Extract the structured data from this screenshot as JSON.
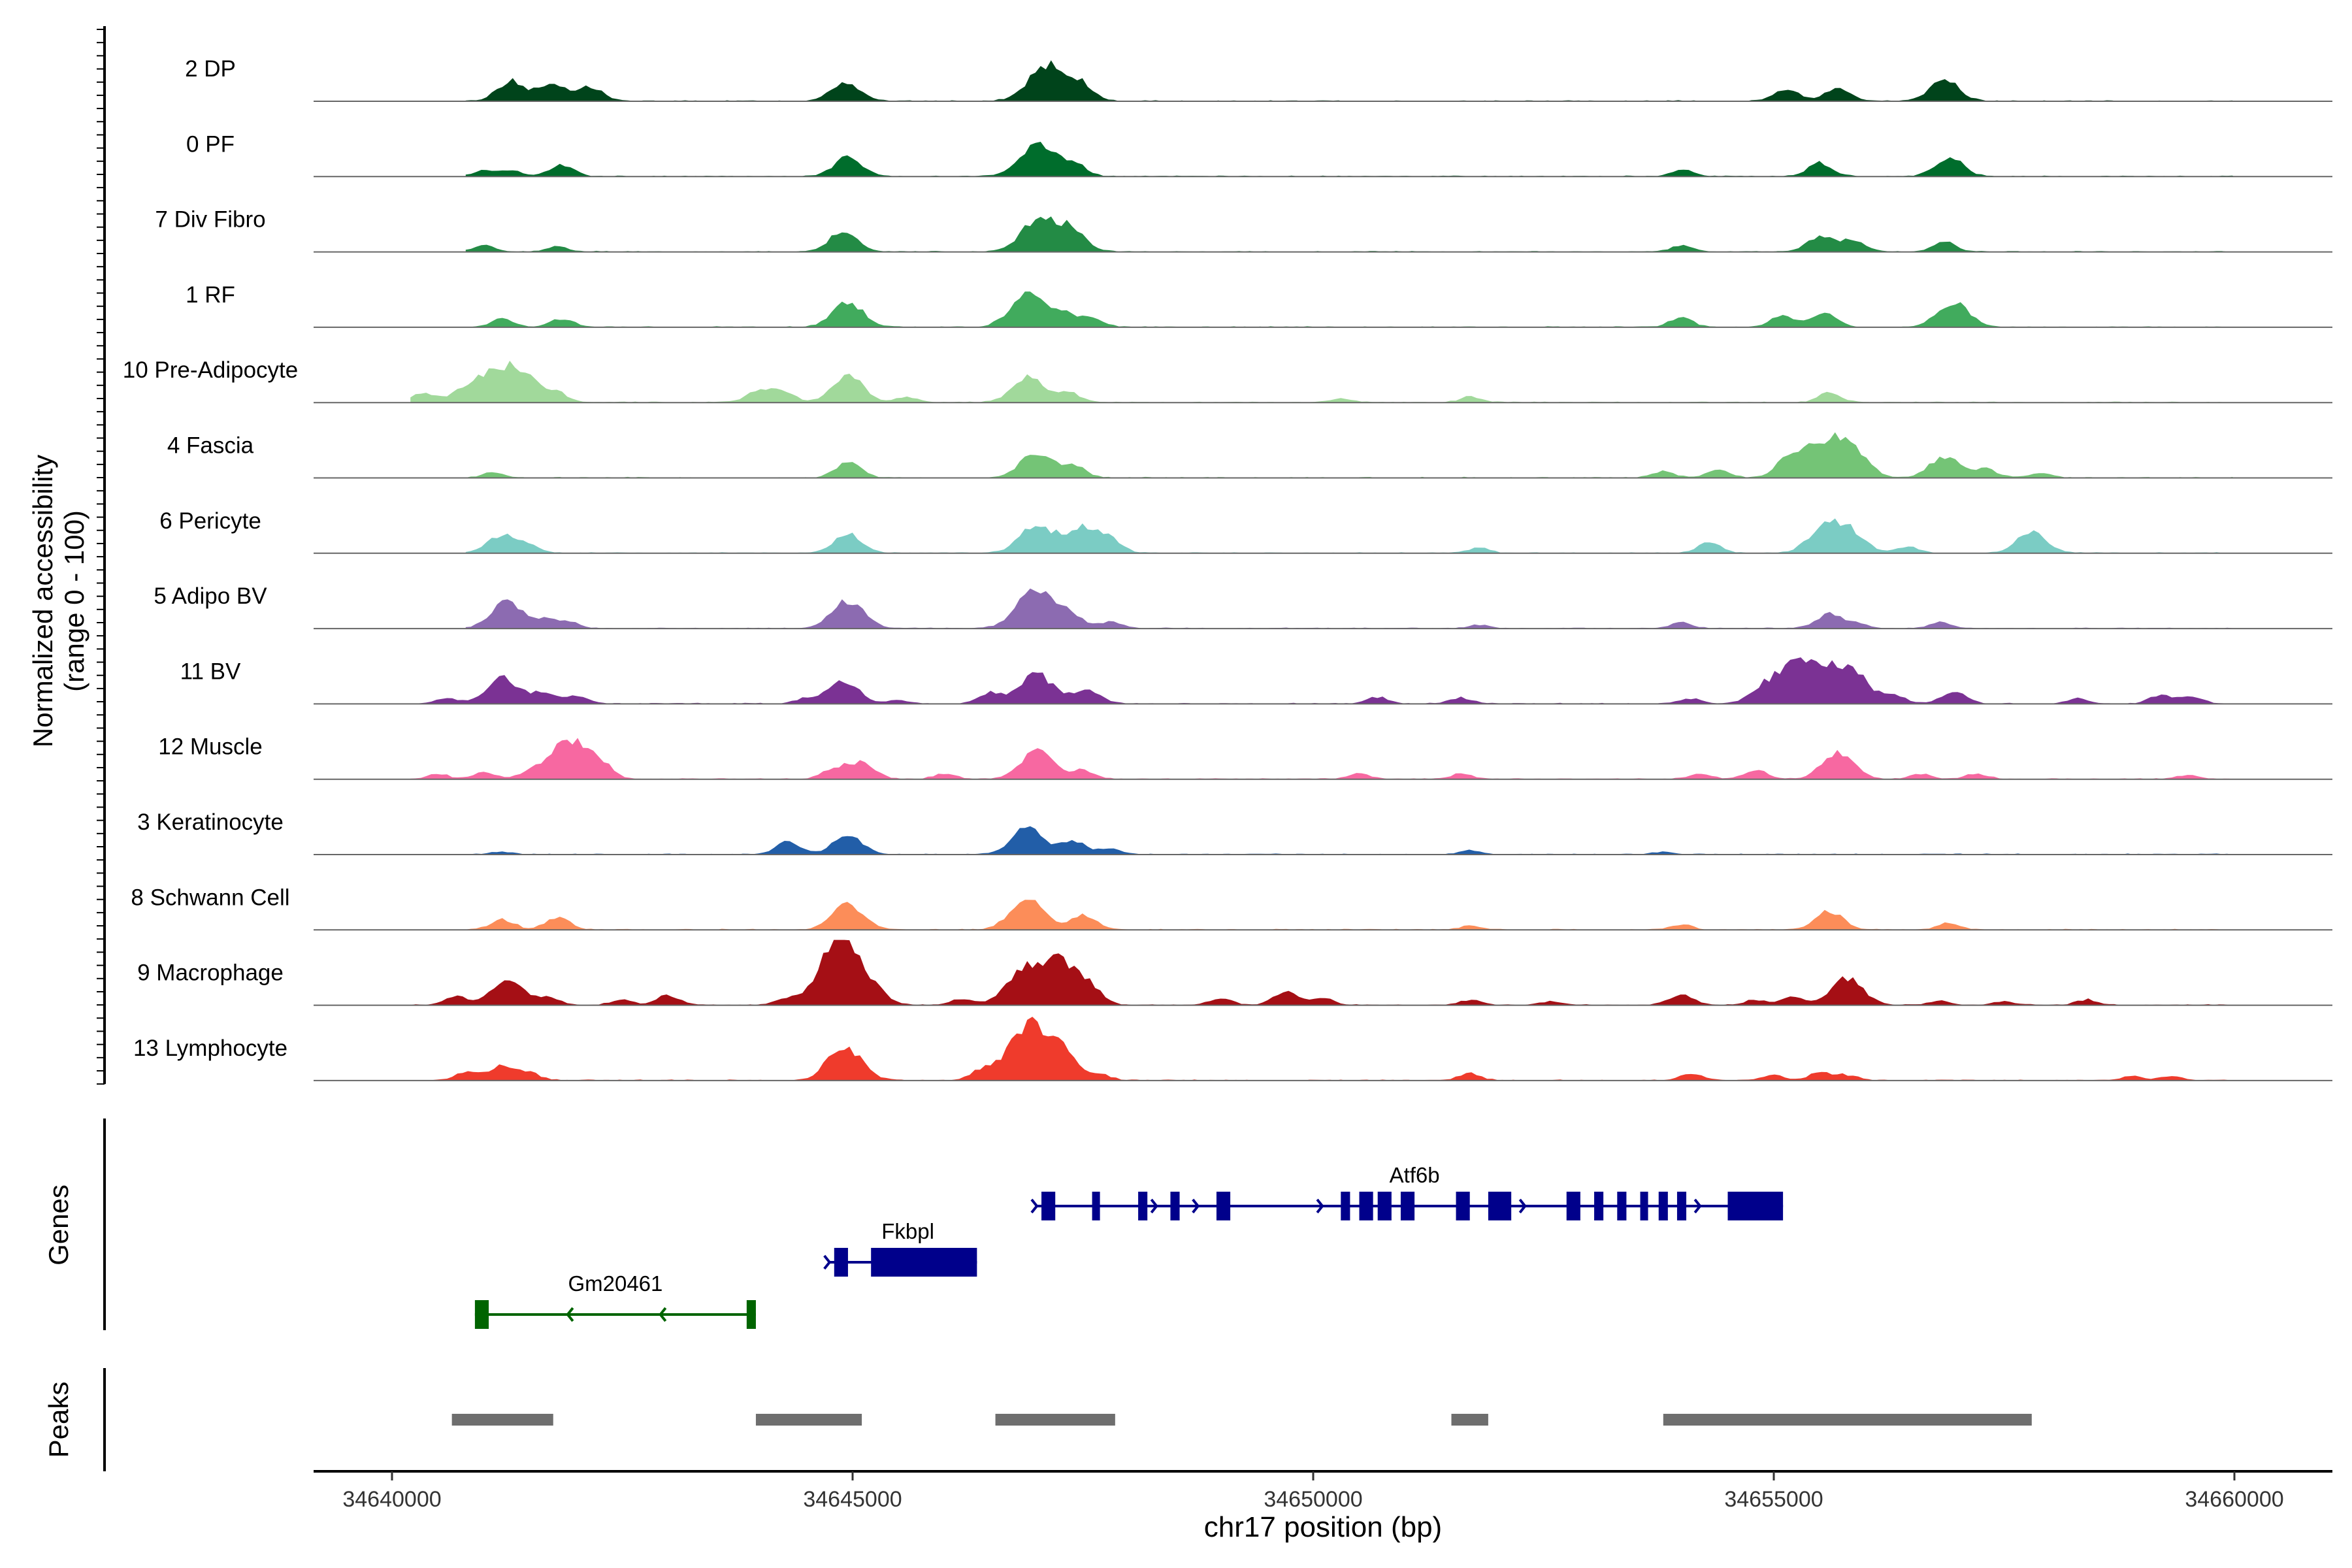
{
  "chart_data": {
    "type": "area",
    "title": "",
    "xlabel": "chr17 position (bp)",
    "ylabel": "Normalized accessibility\n(range 0 - 100)",
    "ylim": [
      0,
      100
    ],
    "xlim": [
      34639800,
      34662000
    ],
    "x_ticks": [
      34640000,
      34645000,
      34650000,
      34655000,
      34660000
    ],
    "x_tick_labels": [
      "34640000",
      "34645000",
      "34650000",
      "34655000",
      "34660000"
    ],
    "panel_labels": {
      "genes": "Genes",
      "peaks": "Peaks"
    },
    "tracks": [
      {
        "name": "2 DP",
        "color": "#00441b",
        "range": [
          34640800,
          34660000
        ],
        "peaks": [
          [
            34640850,
            34641300,
            2
          ],
          [
            34641700,
            34641300,
            6
          ],
          [
            34642250,
            34641450,
            8
          ],
          [
            34643200,
            34642550,
            3
          ],
          [
            34644950,
            34645150,
            7
          ],
          [
            34645600,
            34646100,
            2
          ],
          [
            34646800,
            34647150,
            9
          ],
          [
            34647200,
            34646800,
            2
          ],
          [
            34647500,
            34647800,
            5
          ],
          [
            34650000,
            34650500,
            2
          ],
          [
            34651500,
            34651900,
            3
          ],
          [
            34653300,
            34653200,
            6
          ],
          [
            34654300,
            34654600,
            4
          ],
          [
            34655600,
            34655800,
            7
          ],
          [
            34656500,
            34657900,
            4
          ],
          [
            34657100,
            34657100,
            11
          ],
          [
            34659000,
            34658700,
            2
          ]
        ],
        "bigpeaks": [
          [
            34641300,
            30
          ],
          [
            34641750,
            25
          ],
          [
            34642150,
            22
          ],
          [
            34644920,
            30
          ],
          [
            34647120,
            56
          ],
          [
            34647500,
            20
          ],
          [
            34655150,
            18
          ],
          [
            34655700,
            20
          ],
          [
            34656850,
            32
          ]
        ]
      },
      {
        "name": "0 PF",
        "color": "#006d2c",
        "range": [
          34640800,
          34660000
        ],
        "bigpeaks": [
          [
            34641000,
            9
          ],
          [
            34641300,
            9
          ],
          [
            34641850,
            17
          ],
          [
            34644950,
            29
          ],
          [
            34647000,
            50
          ],
          [
            34647400,
            19
          ],
          [
            34654000,
            10
          ],
          [
            34655500,
            20
          ],
          [
            34656900,
            29
          ]
        ]
      },
      {
        "name": "7 Div Fibro",
        "color": "#238b45",
        "range": [
          34640800,
          34660000
        ],
        "bigpeaks": [
          [
            34641000,
            10
          ],
          [
            34641800,
            8
          ],
          [
            34644900,
            30
          ],
          [
            34647000,
            45
          ],
          [
            34647350,
            35
          ],
          [
            34654000,
            9
          ],
          [
            34655500,
            22
          ],
          [
            34655850,
            18
          ],
          [
            34656850,
            15
          ]
        ]
      },
      {
        "name": "1 RF",
        "color": "#41ab5d",
        "range": [
          34640800,
          34660000
        ],
        "bigpeaks": [
          [
            34641200,
            13
          ],
          [
            34641850,
            12
          ],
          [
            34644950,
            37
          ],
          [
            34646900,
            48
          ],
          [
            34647300,
            20
          ],
          [
            34647600,
            12
          ],
          [
            34654000,
            14
          ],
          [
            34655100,
            17
          ],
          [
            34655550,
            20
          ],
          [
            34656950,
            38
          ]
        ]
      },
      {
        "name": "10 Pre-Adipocyte",
        "color": "#a1d99b",
        "range": [
          34640200,
          34660000
        ],
        "bigpeaks": [
          [
            34640350,
            14
          ],
          [
            34640800,
            22
          ],
          [
            34641200,
            55
          ],
          [
            34641500,
            20
          ],
          [
            34641800,
            14
          ],
          [
            34644000,
            20
          ],
          [
            34644250,
            14
          ],
          [
            34644950,
            40
          ],
          [
            34645600,
            8
          ],
          [
            34646900,
            38
          ],
          [
            34647350,
            14
          ],
          [
            34650300,
            6
          ],
          [
            34651700,
            8
          ],
          [
            34655600,
            14
          ]
        ]
      },
      {
        "name": "4 Fascia",
        "color": "#74c476",
        "range": [
          34640800,
          34660000
        ],
        "bigpeaks": [
          [
            34641100,
            8
          ],
          [
            34644950,
            22
          ],
          [
            34647000,
            40
          ],
          [
            34647400,
            18
          ],
          [
            34653800,
            10
          ],
          [
            34654400,
            12
          ],
          [
            34655200,
            33
          ],
          [
            34655600,
            54
          ],
          [
            34655900,
            30
          ],
          [
            34656850,
            33
          ],
          [
            34657300,
            14
          ],
          [
            34657900,
            8
          ]
        ]
      },
      {
        "name": "6 Pericyte",
        "color": "#7bccc4",
        "range": [
          34640800,
          34660000
        ],
        "bigpeaks": [
          [
            34641200,
            28
          ],
          [
            34641500,
            10
          ],
          [
            34644950,
            28
          ],
          [
            34647000,
            45
          ],
          [
            34647500,
            38
          ],
          [
            34647800,
            18
          ],
          [
            34651800,
            8
          ],
          [
            34654300,
            16
          ],
          [
            34655600,
            50
          ],
          [
            34655900,
            18
          ],
          [
            34656450,
            10
          ],
          [
            34657800,
            33
          ]
        ]
      },
      {
        "name": "5 Adipo BV",
        "color": "#8c6bb1",
        "range": [
          34640800,
          34660000
        ],
        "bigpeaks": [
          [
            34641250,
            40
          ],
          [
            34641650,
            12
          ],
          [
            34641900,
            10
          ],
          [
            34644950,
            42
          ],
          [
            34647000,
            60
          ],
          [
            34647400,
            14
          ],
          [
            34647800,
            10
          ],
          [
            34651800,
            5
          ],
          [
            34654000,
            9
          ],
          [
            34655600,
            22
          ],
          [
            34655900,
            8
          ],
          [
            34656800,
            9
          ]
        ]
      },
      {
        "name": "11 BV",
        "color": "#7b3294",
        "range": [
          34640200,
          34660000
        ],
        "bigpeaks": [
          [
            34640600,
            8
          ],
          [
            34641200,
            40
          ],
          [
            34641650,
            16
          ],
          [
            34642000,
            12
          ],
          [
            34644500,
            8
          ],
          [
            34644900,
            36
          ],
          [
            34645500,
            6
          ],
          [
            34646500,
            16
          ],
          [
            34647000,
            45
          ],
          [
            34647550,
            22
          ],
          [
            34650700,
            10
          ],
          [
            34651600,
            9
          ],
          [
            34654100,
            8
          ],
          [
            34654800,
            12
          ],
          [
            34655150,
            55
          ],
          [
            34655450,
            28
          ],
          [
            34655700,
            48
          ],
          [
            34655950,
            22
          ],
          [
            34656300,
            14
          ],
          [
            34656950,
            18
          ],
          [
            34658300,
            8
          ],
          [
            34659200,
            14
          ],
          [
            34659550,
            10
          ]
        ]
      },
      {
        "name": "12 Muscle",
        "color": "#f768a1",
        "range": [
          34640200,
          34660000
        ],
        "bigpeaks": [
          [
            34640500,
            8
          ],
          [
            34641000,
            10
          ],
          [
            34641500,
            12
          ],
          [
            34641800,
            28
          ],
          [
            34642000,
            40
          ],
          [
            34642250,
            22
          ],
          [
            34644800,
            16
          ],
          [
            34645100,
            24
          ],
          [
            34646000,
            8
          ],
          [
            34647000,
            42
          ],
          [
            34647500,
            14
          ],
          [
            34650500,
            8
          ],
          [
            34651600,
            8
          ],
          [
            34654200,
            8
          ],
          [
            34654800,
            14
          ],
          [
            34655700,
            40
          ],
          [
            34656600,
            8
          ],
          [
            34657200,
            8
          ],
          [
            34659500,
            6
          ]
        ]
      },
      {
        "name": "3 Keratinocyte",
        "color": "#225ea8",
        "range": [
          34640800,
          34660000
        ],
        "bigpeaks": [
          [
            34641200,
            4
          ],
          [
            34644300,
            18
          ],
          [
            34644950,
            30
          ],
          [
            34646900,
            40
          ],
          [
            34647400,
            20
          ],
          [
            34647800,
            8
          ],
          [
            34651700,
            6
          ],
          [
            34653800,
            4
          ]
        ]
      },
      {
        "name": "8 Schwann Cell",
        "color": "#fc8d59",
        "range": [
          34640800,
          34660000
        ],
        "bigpeaks": [
          [
            34641200,
            15
          ],
          [
            34641800,
            18
          ],
          [
            34644950,
            38
          ],
          [
            34646900,
            46
          ],
          [
            34647500,
            22
          ],
          [
            34651700,
            6
          ],
          [
            34654000,
            8
          ],
          [
            34655600,
            28
          ],
          [
            34656900,
            10
          ]
        ]
      },
      {
        "name": "9 Macrophage",
        "color": "#a50f15",
        "range": [
          34640200,
          34660000
        ],
        "bigpeaks": [
          [
            34640700,
            14
          ],
          [
            34641250,
            38
          ],
          [
            34641700,
            12
          ],
          [
            34642500,
            8
          ],
          [
            34643000,
            14
          ],
          [
            34644300,
            10
          ],
          [
            34644800,
            42
          ],
          [
            34644950,
            75
          ],
          [
            34646200,
            10
          ],
          [
            34646800,
            40
          ],
          [
            34647200,
            68
          ],
          [
            34647550,
            22
          ],
          [
            34649000,
            10
          ],
          [
            34649700,
            20
          ],
          [
            34650100,
            10
          ],
          [
            34651700,
            8
          ],
          [
            34652600,
            6
          ],
          [
            34654000,
            16
          ],
          [
            34654800,
            8
          ],
          [
            34655200,
            12
          ],
          [
            34655800,
            40
          ],
          [
            34656800,
            6
          ],
          [
            34657500,
            6
          ],
          [
            34658400,
            8
          ]
        ]
      },
      {
        "name": "13 Lymphocyte",
        "color": "#ef3b2c",
        "range": [
          34640200,
          34660000
        ],
        "bigpeaks": [
          [
            34640800,
            12
          ],
          [
            34641200,
            24
          ],
          [
            34641500,
            10
          ],
          [
            34644800,
            25
          ],
          [
            34645000,
            35
          ],
          [
            34646400,
            12
          ],
          [
            34646950,
            85
          ],
          [
            34647350,
            20
          ],
          [
            34647700,
            8
          ],
          [
            34651700,
            10
          ],
          [
            34654100,
            10
          ],
          [
            34655000,
            8
          ],
          [
            34655500,
            12
          ],
          [
            34655800,
            8
          ],
          [
            34658900,
            6
          ],
          [
            34659300,
            6
          ]
        ]
      }
    ],
    "genes": [
      {
        "name": "Gm20461",
        "color": "#006400",
        "strand": "-",
        "start": 34640900,
        "end": 34643950,
        "exons": [
          [
            34640900,
            34641050
          ],
          [
            34643850,
            34643950
          ]
        ],
        "row": 2
      },
      {
        "name": "Fkbpl",
        "color": "#00008b",
        "strand": "+",
        "start": 34644750,
        "end": 34646350,
        "exons": [
          [
            34644800,
            34644950
          ],
          [
            34645200,
            34646350
          ]
        ],
        "row": 1
      },
      {
        "name": "Atf6b",
        "color": "#00008b",
        "strand": "+",
        "start": 34647000,
        "end": 34655100,
        "exons": [
          [
            34647050,
            34647200
          ],
          [
            34647600,
            34647650
          ],
          [
            34648100,
            34648200
          ],
          [
            34648450,
            34648550
          ],
          [
            34648950,
            34649100
          ],
          [
            34650300,
            34650400
          ],
          [
            34650500,
            34650650
          ],
          [
            34650700,
            34650850
          ],
          [
            34650950,
            34651100
          ],
          [
            34651550,
            34651700
          ],
          [
            34651900,
            34652150
          ],
          [
            34652750,
            34652900
          ],
          [
            34653050,
            34653150
          ],
          [
            34653300,
            34653400
          ],
          [
            34653550,
            34653600
          ],
          [
            34653750,
            34653850
          ],
          [
            34653950,
            34654050
          ],
          [
            34654500,
            34655100
          ]
        ],
        "arrows": [
          34648300,
          34648750,
          34650100,
          34652300,
          34654200
        ],
        "row": 0
      }
    ],
    "peak_regions": [
      [
        34640650,
        34641750
      ],
      [
        34643950,
        34645100
      ],
      [
        34646550,
        34647850
      ],
      [
        34651500,
        34651900
      ],
      [
        34653800,
        34657800
      ]
    ]
  }
}
